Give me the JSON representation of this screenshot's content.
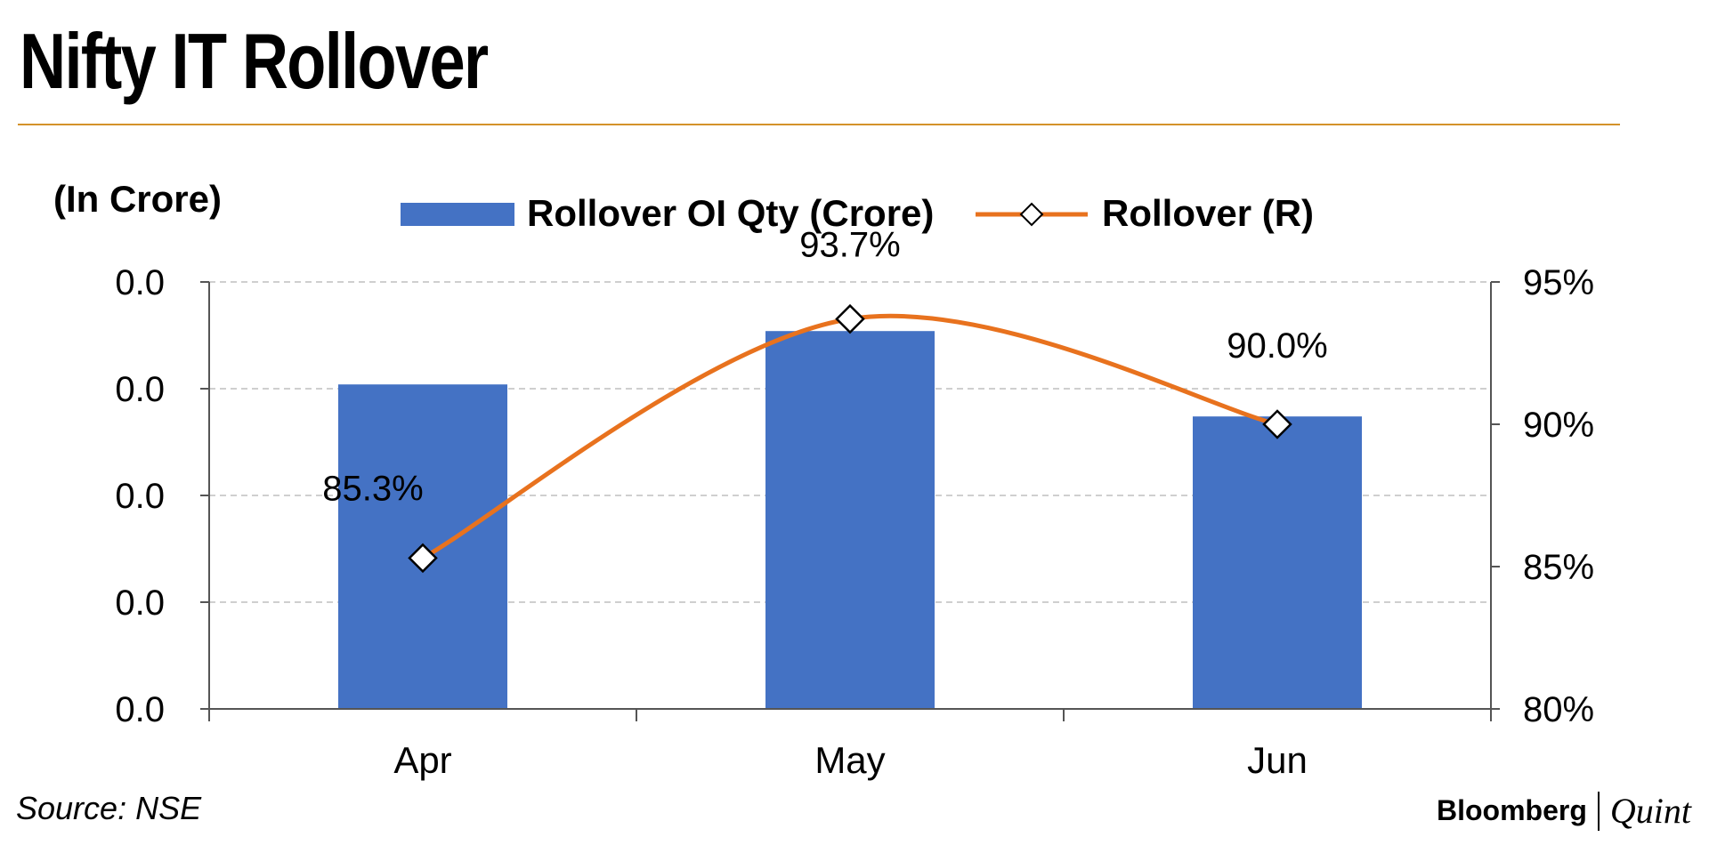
{
  "title": "Nifty IT Rollover",
  "source": "Source: NSE",
  "brand": {
    "primary": "Bloomberg",
    "secondary": "Quint"
  },
  "colors": {
    "bar": "#4472c4",
    "line": "#e8721e",
    "rule": "#d4922a",
    "grid": "#bfbfbf",
    "axis": "#555555"
  },
  "chart_data": {
    "type": "bar",
    "unit_label": "(In Crore)",
    "categories": [
      "Apr",
      "May",
      "Jun"
    ],
    "legend_position": "top",
    "grid": true,
    "series": [
      {
        "name": "Rollover OI Qty (Crore)",
        "type": "bar",
        "axis": "left",
        "values_fraction_of_axis": [
          0.76,
          0.885,
          0.685
        ]
      },
      {
        "name": "Rollover (R)",
        "type": "line",
        "axis": "right",
        "marker": "diamond",
        "values": [
          85.3,
          93.7,
          90.0
        ],
        "data_labels": [
          "85.3%",
          "93.7%",
          "90.0%"
        ]
      }
    ],
    "left_axis": {
      "ticks": [
        "0.0",
        "0.0",
        "0.0",
        "0.0",
        "0.0"
      ]
    },
    "right_axis": {
      "range": [
        80,
        95
      ],
      "ticks": [
        "95%",
        "90%",
        "85%",
        "80%"
      ]
    }
  }
}
